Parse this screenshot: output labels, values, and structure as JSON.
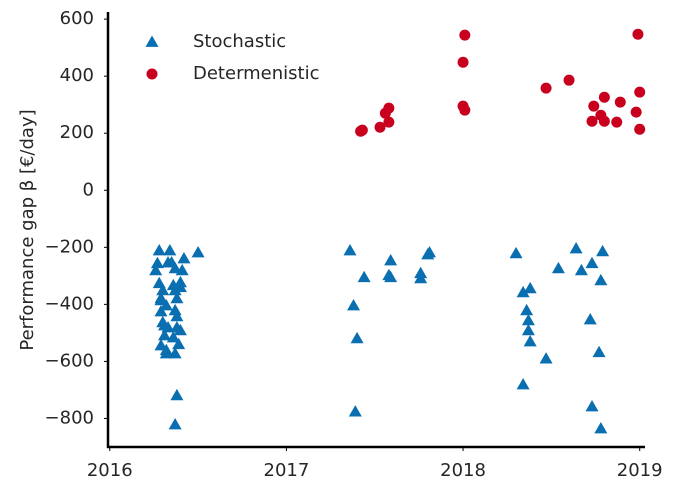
{
  "chart_data": {
    "type": "scatter",
    "y_label": "Performance gap β [€/day]",
    "xlim": [
      2015.99,
      2019.03
    ],
    "xticks": [
      2016,
      2017,
      2018,
      2019
    ],
    "ylim": [
      -900,
      625
    ],
    "yticks": [
      {
        "value": -800,
        "label": "−800"
      },
      {
        "value": -600,
        "label": "−600"
      },
      {
        "value": -400,
        "label": "−400"
      },
      {
        "value": -200,
        "label": "−200"
      },
      0,
      200,
      400,
      600
    ],
    "legend": "upper left",
    "series": [
      {
        "name": "Stochastic",
        "color": "#0a6fb0",
        "marker": "triangle",
        "x": [
          2016.28,
          2016.27,
          2016.26,
          2016.28,
          2016.29,
          2016.29,
          2016.31,
          2016.32,
          2016.32,
          2016.31,
          2016.3,
          2016.29,
          2016.34,
          2016.35,
          2016.37,
          2016.36,
          2016.37,
          2016.38,
          2016.37,
          2016.38,
          2016.4,
          2016.36,
          2016.39,
          2016.37,
          2016.42,
          2016.41,
          2016.4,
          2016.33,
          2016.3,
          2016.32,
          2016.38,
          2016.37,
          2016.5,
          2016.29,
          2016.4,
          2016.33,
          2016.38,
          2017.36,
          2017.38,
          2017.4,
          2017.44,
          2017.39,
          2017.59,
          2017.58,
          2017.59,
          2017.76,
          2017.76,
          2017.81,
          2017.8,
          2018.3,
          2018.34,
          2018.36,
          2018.37,
          2018.38,
          2018.37,
          2018.38,
          2018.34,
          2018.47,
          2018.54,
          2018.64,
          2018.67,
          2018.73,
          2018.72,
          2018.78,
          2018.79,
          2018.77,
          2018.73,
          2018.78
        ],
        "values": [
          -211,
          -256,
          -281,
          -326,
          -379,
          -425,
          -509,
          -572,
          -561,
          -474,
          -463,
          -544,
          -211,
          -253,
          -274,
          -333,
          -351,
          -379,
          -421,
          -442,
          -491,
          -516,
          -540,
          -572,
          -239,
          -281,
          -340,
          -253,
          -351,
          -404,
          -719,
          -821,
          -218,
          -386,
          -323,
          -481,
          -481,
          -211,
          -404,
          -519,
          -305,
          -776,
          -246,
          -298,
          -305,
          -291,
          -309,
          -218,
          -225,
          -221,
          -358,
          -421,
          -456,
          -344,
          -491,
          -530,
          -681,
          -590,
          -274,
          -204,
          -281,
          -256,
          -453,
          -316,
          -214,
          -568,
          -758,
          -835
        ]
      },
      {
        "name": "Determenistic",
        "color": "#c8001e",
        "marker": "circle",
        "x": [
          2017.42,
          2017.43,
          2017.53,
          2017.56,
          2017.58,
          2017.58,
          2018.01,
          2018.0,
          2018.0,
          2018.01,
          2018.47,
          2018.6,
          2018.74,
          2018.8,
          2018.78,
          2018.73,
          2018.8,
          2018.87,
          2018.98,
          2018.89,
          2019.0,
          2018.99,
          2019.0
        ],
        "values": [
          207,
          211,
          221,
          270,
          288,
          239,
          544,
          449,
          295,
          281,
          358,
          386,
          295,
          326,
          263,
          242,
          242,
          239,
          274,
          309,
          214,
          547,
          344
        ]
      }
    ]
  }
}
